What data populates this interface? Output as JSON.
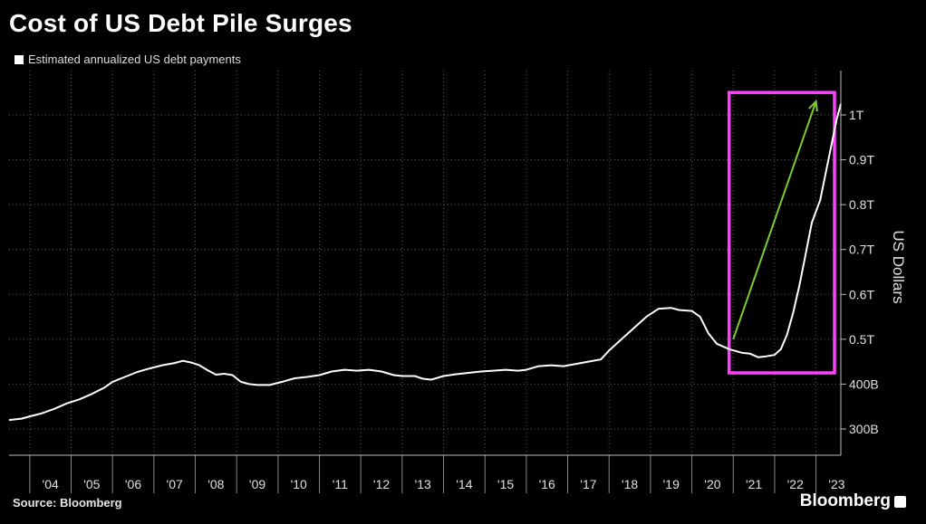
{
  "title": "Cost of US Debt Pile Surges",
  "source": "Source: Bloomberg",
  "brand": "Bloomberg",
  "chart_data": {
    "type": "line",
    "legend": "Estimated annualized US debt payments",
    "legend_position": "top-left",
    "ylabel": "US Dollars",
    "ylim": [
      250,
      1050
    ],
    "xlim": [
      2003.5,
      2023.6
    ],
    "yticks": [
      {
        "value": 300,
        "label": "300B"
      },
      {
        "value": 400,
        "label": "400B"
      },
      {
        "value": 500,
        "label": "0.5T"
      },
      {
        "value": 600,
        "label": "0.6T"
      },
      {
        "value": 700,
        "label": "0.7T"
      },
      {
        "value": 800,
        "label": "0.8T"
      },
      {
        "value": 900,
        "label": "0.9T"
      },
      {
        "value": 1000,
        "label": "1T"
      }
    ],
    "xticks": [
      {
        "value": 2004,
        "label": "'04"
      },
      {
        "value": 2005,
        "label": "'05"
      },
      {
        "value": 2006,
        "label": "'06"
      },
      {
        "value": 2007,
        "label": "'07"
      },
      {
        "value": 2008,
        "label": "'08"
      },
      {
        "value": 2009,
        "label": "'09"
      },
      {
        "value": 2010,
        "label": "'10"
      },
      {
        "value": 2011,
        "label": "'11"
      },
      {
        "value": 2012,
        "label": "'12"
      },
      {
        "value": 2013,
        "label": "'13"
      },
      {
        "value": 2014,
        "label": "'14"
      },
      {
        "value": 2015,
        "label": "'15"
      },
      {
        "value": 2016,
        "label": "'16"
      },
      {
        "value": 2017,
        "label": "'17"
      },
      {
        "value": 2018,
        "label": "'18"
      },
      {
        "value": 2019,
        "label": "'19"
      },
      {
        "value": 2020,
        "label": "'20"
      },
      {
        "value": 2021,
        "label": "'21"
      },
      {
        "value": 2022,
        "label": "'22"
      },
      {
        "value": 2023,
        "label": "'23"
      }
    ],
    "grid": true,
    "series": [
      {
        "color": "#ffffff",
        "points": [
          [
            2003.5,
            320
          ],
          [
            2003.8,
            323
          ],
          [
            2004.0,
            328
          ],
          [
            2004.3,
            335
          ],
          [
            2004.6,
            345
          ],
          [
            2004.9,
            357
          ],
          [
            2005.2,
            366
          ],
          [
            2005.5,
            378
          ],
          [
            2005.8,
            392
          ],
          [
            2006.0,
            405
          ],
          [
            2006.3,
            416
          ],
          [
            2006.6,
            427
          ],
          [
            2006.9,
            435
          ],
          [
            2007.2,
            442
          ],
          [
            2007.5,
            447
          ],
          [
            2007.7,
            452
          ],
          [
            2007.9,
            448
          ],
          [
            2008.1,
            442
          ],
          [
            2008.3,
            431
          ],
          [
            2008.5,
            421
          ],
          [
            2008.7,
            423
          ],
          [
            2008.9,
            420
          ],
          [
            2009.1,
            405
          ],
          [
            2009.3,
            400
          ],
          [
            2009.5,
            398
          ],
          [
            2009.8,
            398
          ],
          [
            2010.1,
            405
          ],
          [
            2010.4,
            413
          ],
          [
            2010.7,
            416
          ],
          [
            2011.0,
            420
          ],
          [
            2011.3,
            428
          ],
          [
            2011.6,
            432
          ],
          [
            2011.9,
            430
          ],
          [
            2012.2,
            432
          ],
          [
            2012.5,
            428
          ],
          [
            2012.8,
            420
          ],
          [
            2013.0,
            418
          ],
          [
            2013.3,
            418
          ],
          [
            2013.5,
            412
          ],
          [
            2013.7,
            410
          ],
          [
            2014.0,
            418
          ],
          [
            2014.3,
            422
          ],
          [
            2014.6,
            425
          ],
          [
            2014.9,
            428
          ],
          [
            2015.2,
            430
          ],
          [
            2015.5,
            432
          ],
          [
            2015.8,
            430
          ],
          [
            2016.0,
            432
          ],
          [
            2016.3,
            440
          ],
          [
            2016.6,
            442
          ],
          [
            2016.9,
            440
          ],
          [
            2017.2,
            445
          ],
          [
            2017.5,
            450
          ],
          [
            2017.8,
            455
          ],
          [
            2018.0,
            475
          ],
          [
            2018.3,
            500
          ],
          [
            2018.6,
            525
          ],
          [
            2018.9,
            550
          ],
          [
            2019.2,
            568
          ],
          [
            2019.5,
            570
          ],
          [
            2019.7,
            565
          ],
          [
            2020.0,
            563
          ],
          [
            2020.2,
            550
          ],
          [
            2020.4,
            513
          ],
          [
            2020.6,
            490
          ],
          [
            2020.9,
            478
          ],
          [
            2021.2,
            470
          ],
          [
            2021.4,
            468
          ],
          [
            2021.6,
            460
          ],
          [
            2021.8,
            462
          ],
          [
            2022.0,
            465
          ],
          [
            2022.15,
            478
          ],
          [
            2022.3,
            510
          ],
          [
            2022.45,
            560
          ],
          [
            2022.6,
            620
          ],
          [
            2022.75,
            690
          ],
          [
            2022.9,
            760
          ],
          [
            2023.1,
            810
          ],
          [
            2023.3,
            900
          ],
          [
            2023.5,
            990
          ],
          [
            2023.6,
            1025
          ]
        ]
      }
    ],
    "annotation": {
      "box_color": "#ff40ff",
      "box_x": [
        2020.9,
        2023.8
      ],
      "box_y": [
        425,
        1050
      ],
      "arrow_color": "#7ccd2e",
      "arrow_from": [
        2021.0,
        500
      ],
      "arrow_to": [
        2023.0,
        1030
      ]
    }
  }
}
